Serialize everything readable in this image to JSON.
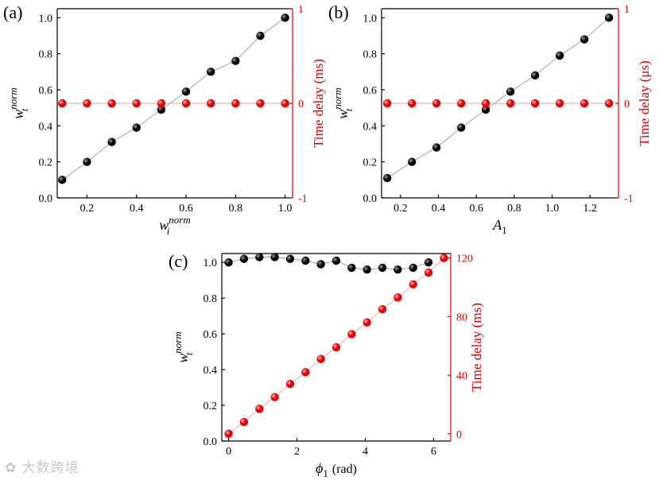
{
  "chart_data": [
    {
      "panel": "(a)",
      "type": "scatter",
      "xlabel": {
        "base": "w",
        "sub": "i",
        "sup": "norm"
      },
      "ylabel": {
        "base": "w",
        "sub": "t",
        "sup": "norm"
      },
      "y2label": "Time delay (ms)",
      "xlim": [
        0.08,
        1.03
      ],
      "ylim": [
        0.0,
        1.05
      ],
      "y2lim": [
        -1,
        1
      ],
      "xticks": [
        0.2,
        0.4,
        0.6,
        0.8,
        1.0
      ],
      "xticklabels": [
        "0.2",
        "0.4",
        "0.6",
        "0.8",
        "1.0"
      ],
      "yticks": [
        0.0,
        0.2,
        0.4,
        0.6,
        0.8,
        1.0
      ],
      "yticklabels": [
        "0.0",
        "0.2",
        "0.4",
        "0.6",
        "0.8",
        "1.0"
      ],
      "y2ticks": [
        -1,
        0,
        1
      ],
      "y2ticklabels": [
        "-1",
        "0",
        "1"
      ],
      "series": [
        {
          "name": "w_t^norm",
          "axis": "left",
          "color": "#000000",
          "x": [
            0.1,
            0.2,
            0.3,
            0.4,
            0.5,
            0.6,
            0.7,
            0.8,
            0.9,
            1.0
          ],
          "y": [
            0.1,
            0.2,
            0.31,
            0.39,
            0.49,
            0.59,
            0.7,
            0.76,
            0.9,
            1.0
          ]
        },
        {
          "name": "Time delay",
          "axis": "right",
          "color": "#e30000",
          "x": [
            0.1,
            0.2,
            0.3,
            0.4,
            0.5,
            0.6,
            0.7,
            0.8,
            0.9,
            1.0
          ],
          "y": [
            0,
            0,
            0,
            0,
            0,
            0,
            0,
            0,
            0,
            0
          ]
        }
      ]
    },
    {
      "panel": "(b)",
      "type": "scatter",
      "xlabel": {
        "base": "A",
        "sub": "1",
        "sup": ""
      },
      "ylabel": {
        "base": "w",
        "sub": "t",
        "sup": "norm"
      },
      "y2label": "Time delay (μs)",
      "xlim": [
        0.1,
        1.35
      ],
      "ylim": [
        0.0,
        1.05
      ],
      "y2lim": [
        -1,
        1
      ],
      "xticks": [
        0.2,
        0.4,
        0.6,
        0.8,
        1.0,
        1.2
      ],
      "xticklabels": [
        "0.2",
        "0.4",
        "0.6",
        "0.8",
        "1.0",
        "1.2"
      ],
      "yticks": [
        0.0,
        0.2,
        0.4,
        0.6,
        0.8,
        1.0
      ],
      "yticklabels": [
        "0.0",
        "0.2",
        "0.4",
        "0.6",
        "0.8",
        "1.0"
      ],
      "y2ticks": [
        -1,
        0,
        1
      ],
      "y2ticklabels": [
        "-1",
        "0",
        "1"
      ],
      "series": [
        {
          "name": "w_t^norm",
          "axis": "left",
          "color": "#000000",
          "x": [
            0.13,
            0.26,
            0.39,
            0.52,
            0.65,
            0.78,
            0.91,
            1.04,
            1.17,
            1.3
          ],
          "y": [
            0.11,
            0.2,
            0.28,
            0.39,
            0.49,
            0.59,
            0.68,
            0.79,
            0.88,
            1.0
          ]
        },
        {
          "name": "Time delay",
          "axis": "right",
          "color": "#e30000",
          "x": [
            0.13,
            0.26,
            0.39,
            0.52,
            0.65,
            0.78,
            0.91,
            1.04,
            1.17,
            1.3
          ],
          "y": [
            0,
            0,
            0,
            0,
            0,
            0,
            0,
            0,
            0,
            0
          ]
        }
      ]
    },
    {
      "panel": "(c)",
      "type": "scatter",
      "xlabel": {
        "base": "ϕ",
        "sub": "1",
        "sup": "",
        "unit": "(rad)"
      },
      "ylabel": {
        "base": "w",
        "sub": "t",
        "sup": "norm"
      },
      "y2label": "Time delay (ms)",
      "xlim": [
        -0.2,
        6.5
      ],
      "ylim": [
        0.0,
        1.05
      ],
      "y2lim": [
        -5,
        123
      ],
      "xticks": [
        0,
        2,
        4,
        6
      ],
      "xticklabels": [
        "0",
        "2",
        "4",
        "6"
      ],
      "yticks": [
        0.0,
        0.2,
        0.4,
        0.6,
        0.8,
        1.0
      ],
      "yticklabels": [
        "0.0",
        "0.2",
        "0.4",
        "0.6",
        "0.8",
        "1.0"
      ],
      "y2ticks": [
        0,
        40,
        80,
        120
      ],
      "y2ticklabels": [
        "0",
        "40",
        "80",
        "120"
      ],
      "series": [
        {
          "name": "w_t^norm",
          "axis": "left",
          "color": "#000000",
          "x": [
            0.0,
            0.45,
            0.9,
            1.35,
            1.8,
            2.25,
            2.7,
            3.15,
            3.6,
            4.05,
            4.5,
            4.95,
            5.4,
            5.85
          ],
          "y": [
            1.0,
            1.02,
            1.03,
            1.03,
            1.02,
            1.01,
            0.99,
            1.01,
            0.97,
            0.96,
            0.97,
            0.96,
            0.97,
            1.0
          ]
        },
        {
          "name": "Time delay",
          "axis": "right",
          "color": "#e30000",
          "x": [
            0.0,
            0.45,
            0.9,
            1.35,
            1.8,
            2.25,
            2.7,
            3.15,
            3.6,
            4.05,
            4.5,
            4.95,
            5.4,
            5.85,
            6.3
          ],
          "y": [
            0,
            8,
            17,
            25,
            34,
            42,
            51,
            59,
            68,
            76,
            85,
            93,
            102,
            110,
            120
          ]
        }
      ]
    }
  ],
  "watermark": "大数跨境"
}
